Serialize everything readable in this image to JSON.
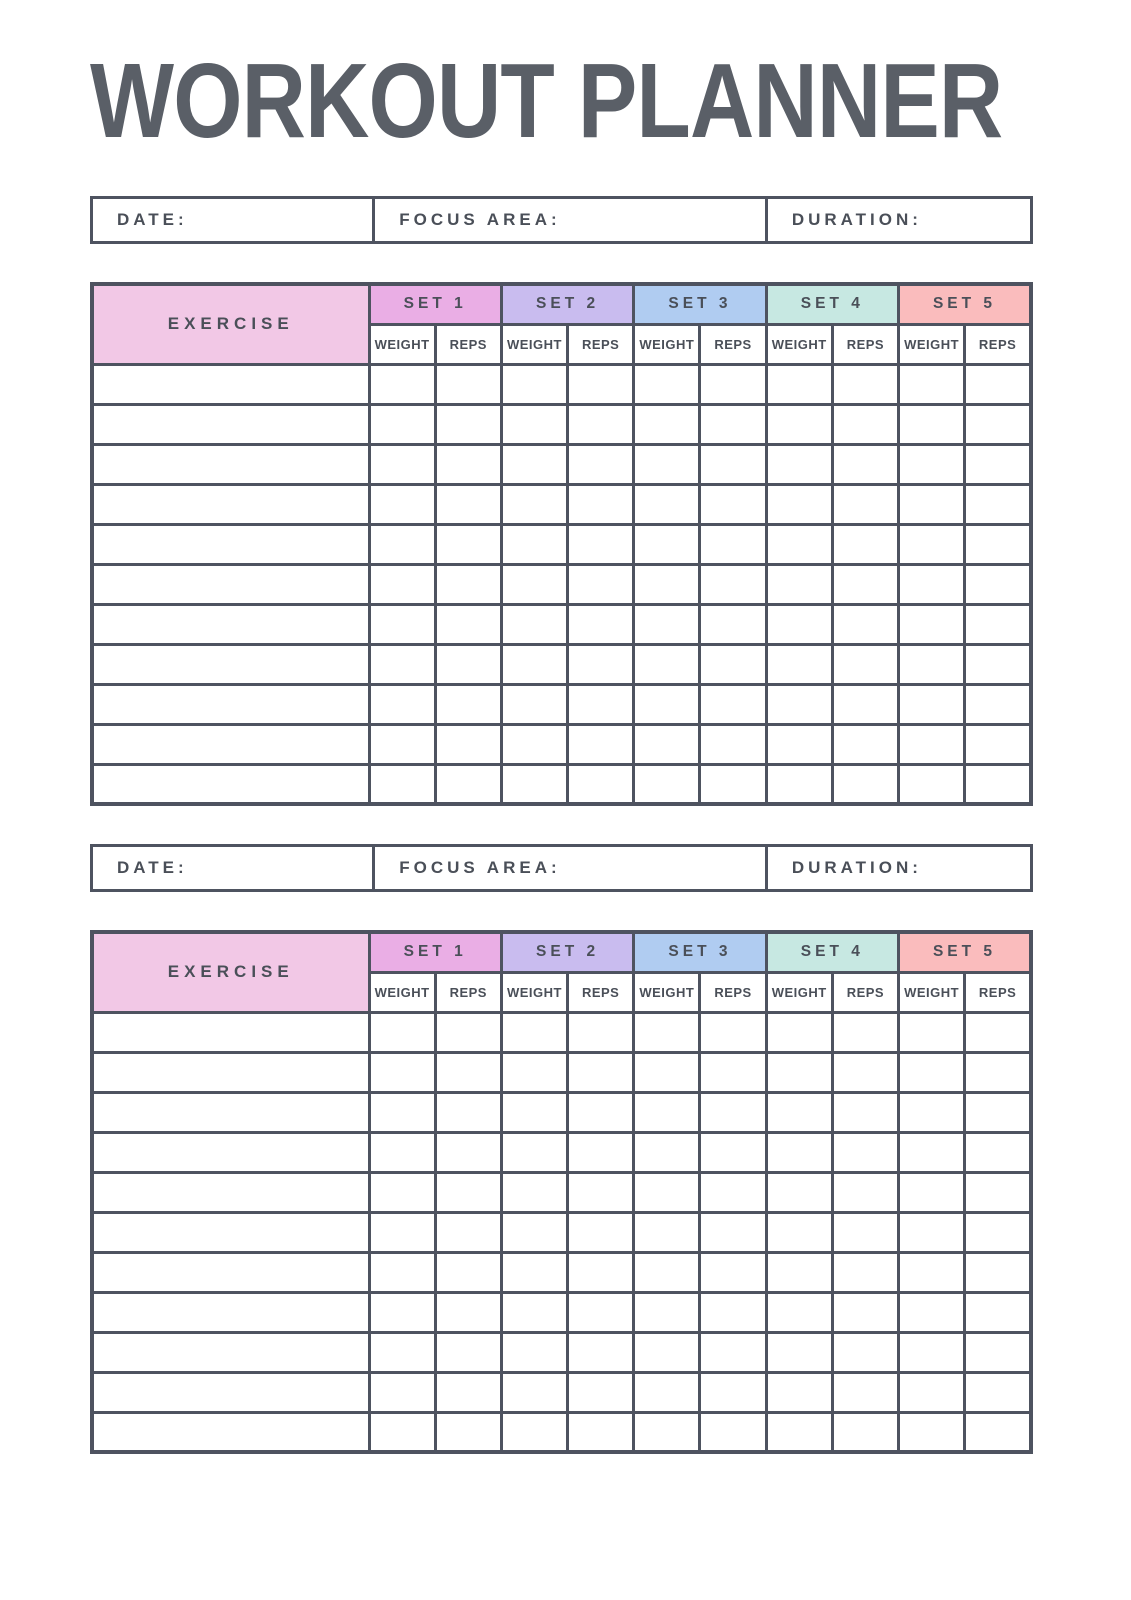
{
  "page": {
    "title": "WORKOUT PLANNER"
  },
  "colors": {
    "page_bg": "#ffffff",
    "title_text": "#5a5f67",
    "line": "#4e5360",
    "label_text": "#4a4f58",
    "exercise_header_bg": "#f2c8e6",
    "set_colors": [
      "#eaaee5",
      "#c9bcef",
      "#b0ccf1",
      "#c7e8e2",
      "#fabcbd"
    ],
    "cell_bg": "#ffffff"
  },
  "info_bar": {
    "date_label": "DATE:",
    "focus_label": "FOCUS AREA:",
    "duration_label": "DURATION:"
  },
  "table": {
    "exercise_header": "EXERCISE",
    "set_headers": [
      "SET 1",
      "SET 2",
      "SET 3",
      "SET 4",
      "SET 5"
    ],
    "sub_headers": [
      "WEIGHT",
      "REPS"
    ],
    "body_rows": 11,
    "cell_values": []
  },
  "section_count": 2
}
